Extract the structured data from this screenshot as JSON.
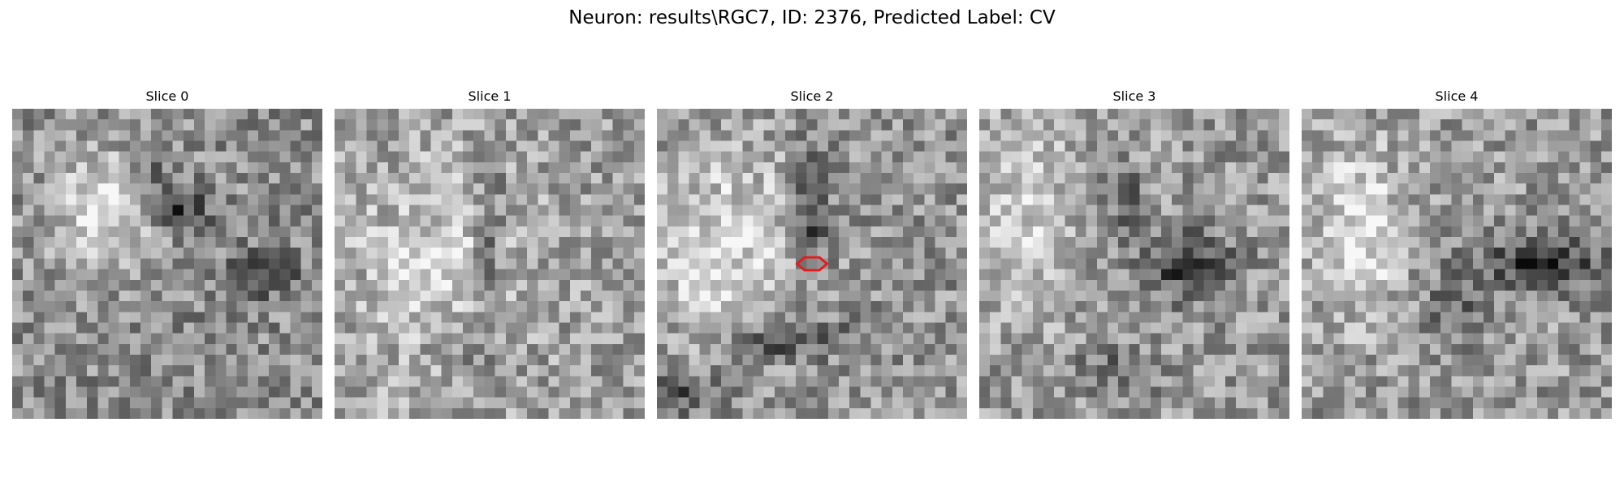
{
  "figure": {
    "title": "Neuron: results\\RGC7, ID: 2376, Predicted Label: CV"
  },
  "panels": [
    {
      "title": "Slice 0"
    },
    {
      "title": "Slice 1"
    },
    {
      "title": "Slice 2"
    },
    {
      "title": "Slice 3"
    },
    {
      "title": "Slice 4"
    }
  ],
  "marker": {
    "panel": 2,
    "shape": "hexagon-outline",
    "color": "#e41a1c"
  },
  "colors": {
    "background": "#ffffff",
    "colormap": "grayscale"
  }
}
